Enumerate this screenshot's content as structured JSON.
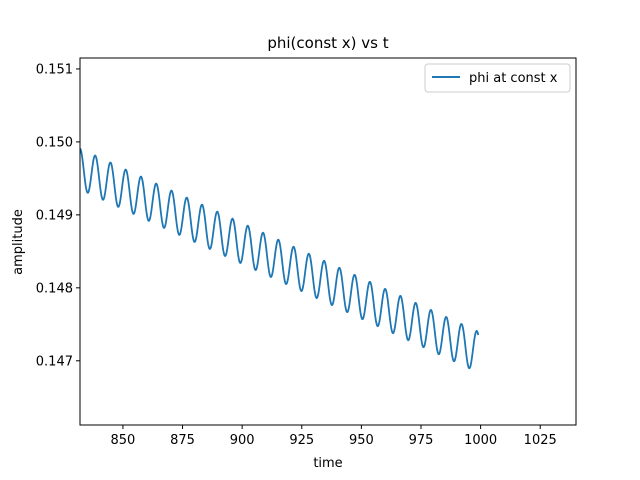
{
  "chart_data": {
    "type": "line",
    "title": "phi(const x) vs t",
    "xlabel": "time",
    "ylabel": "amplitude",
    "xlim": [
      832,
      1040
    ],
    "ylim": [
      0.14612,
      0.15115
    ],
    "xticks": [
      850,
      875,
      900,
      925,
      950,
      975,
      1000,
      1025
    ],
    "xtick_labels": [
      "850",
      "875",
      "900",
      "925",
      "950",
      "975",
      "1000",
      "1025"
    ],
    "yticks": [
      0.147,
      0.148,
      0.149,
      0.15,
      0.151
    ],
    "ytick_labels": [
      "0.147",
      "0.148",
      "0.149",
      "0.150",
      "0.151"
    ],
    "grid": false,
    "legend_position": "top-right",
    "series": [
      {
        "name": "phi at const x",
        "color": "#1f77b4",
        "x_range": [
          832,
          999
        ],
        "baseline_start": 0.14963,
        "baseline_end": 0.14712,
        "oscillation_amplitude": 0.00028,
        "oscillation_period": 6.4
      }
    ]
  }
}
